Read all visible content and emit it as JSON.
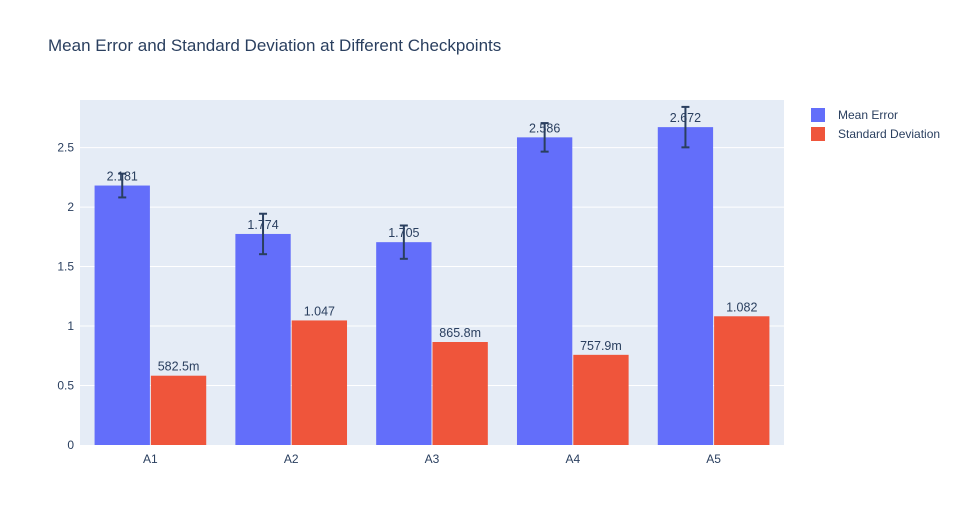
{
  "chart_data": {
    "type": "bar",
    "title": "Mean Error and Standard Deviation at Different Checkpoints",
    "categories": [
      "A1",
      "A2",
      "A3",
      "A4",
      "A5"
    ],
    "series": [
      {
        "name": "Mean Error",
        "values": [
          2.181,
          1.774,
          1.705,
          2.586,
          2.672
        ],
        "labels": [
          "2.181",
          "1.774",
          "1.705",
          "2.586",
          "2.672"
        ],
        "error": [
          0.1,
          0.17,
          0.14,
          0.12,
          0.17
        ],
        "color": "#636efa"
      },
      {
        "name": "Standard Deviation",
        "values": [
          0.5825,
          1.047,
          0.8658,
          0.7579,
          1.082
        ],
        "labels": [
          "582.5m",
          "1.047",
          "865.8m",
          "757.9m",
          "1.082"
        ],
        "color": "#ef553b"
      }
    ],
    "yticks": [
      0,
      0.5,
      1,
      1.5,
      2,
      2.5
    ],
    "ytick_labels": [
      "0",
      "0.5",
      "1",
      "1.5",
      "2",
      "2.5"
    ],
    "ylim": [
      0,
      2.9
    ],
    "grid": true,
    "legend_position": "top-right",
    "background": "#e5ecf6",
    "gridline_color": "#ffffff",
    "errorbar_color": "#2a3f5f"
  }
}
